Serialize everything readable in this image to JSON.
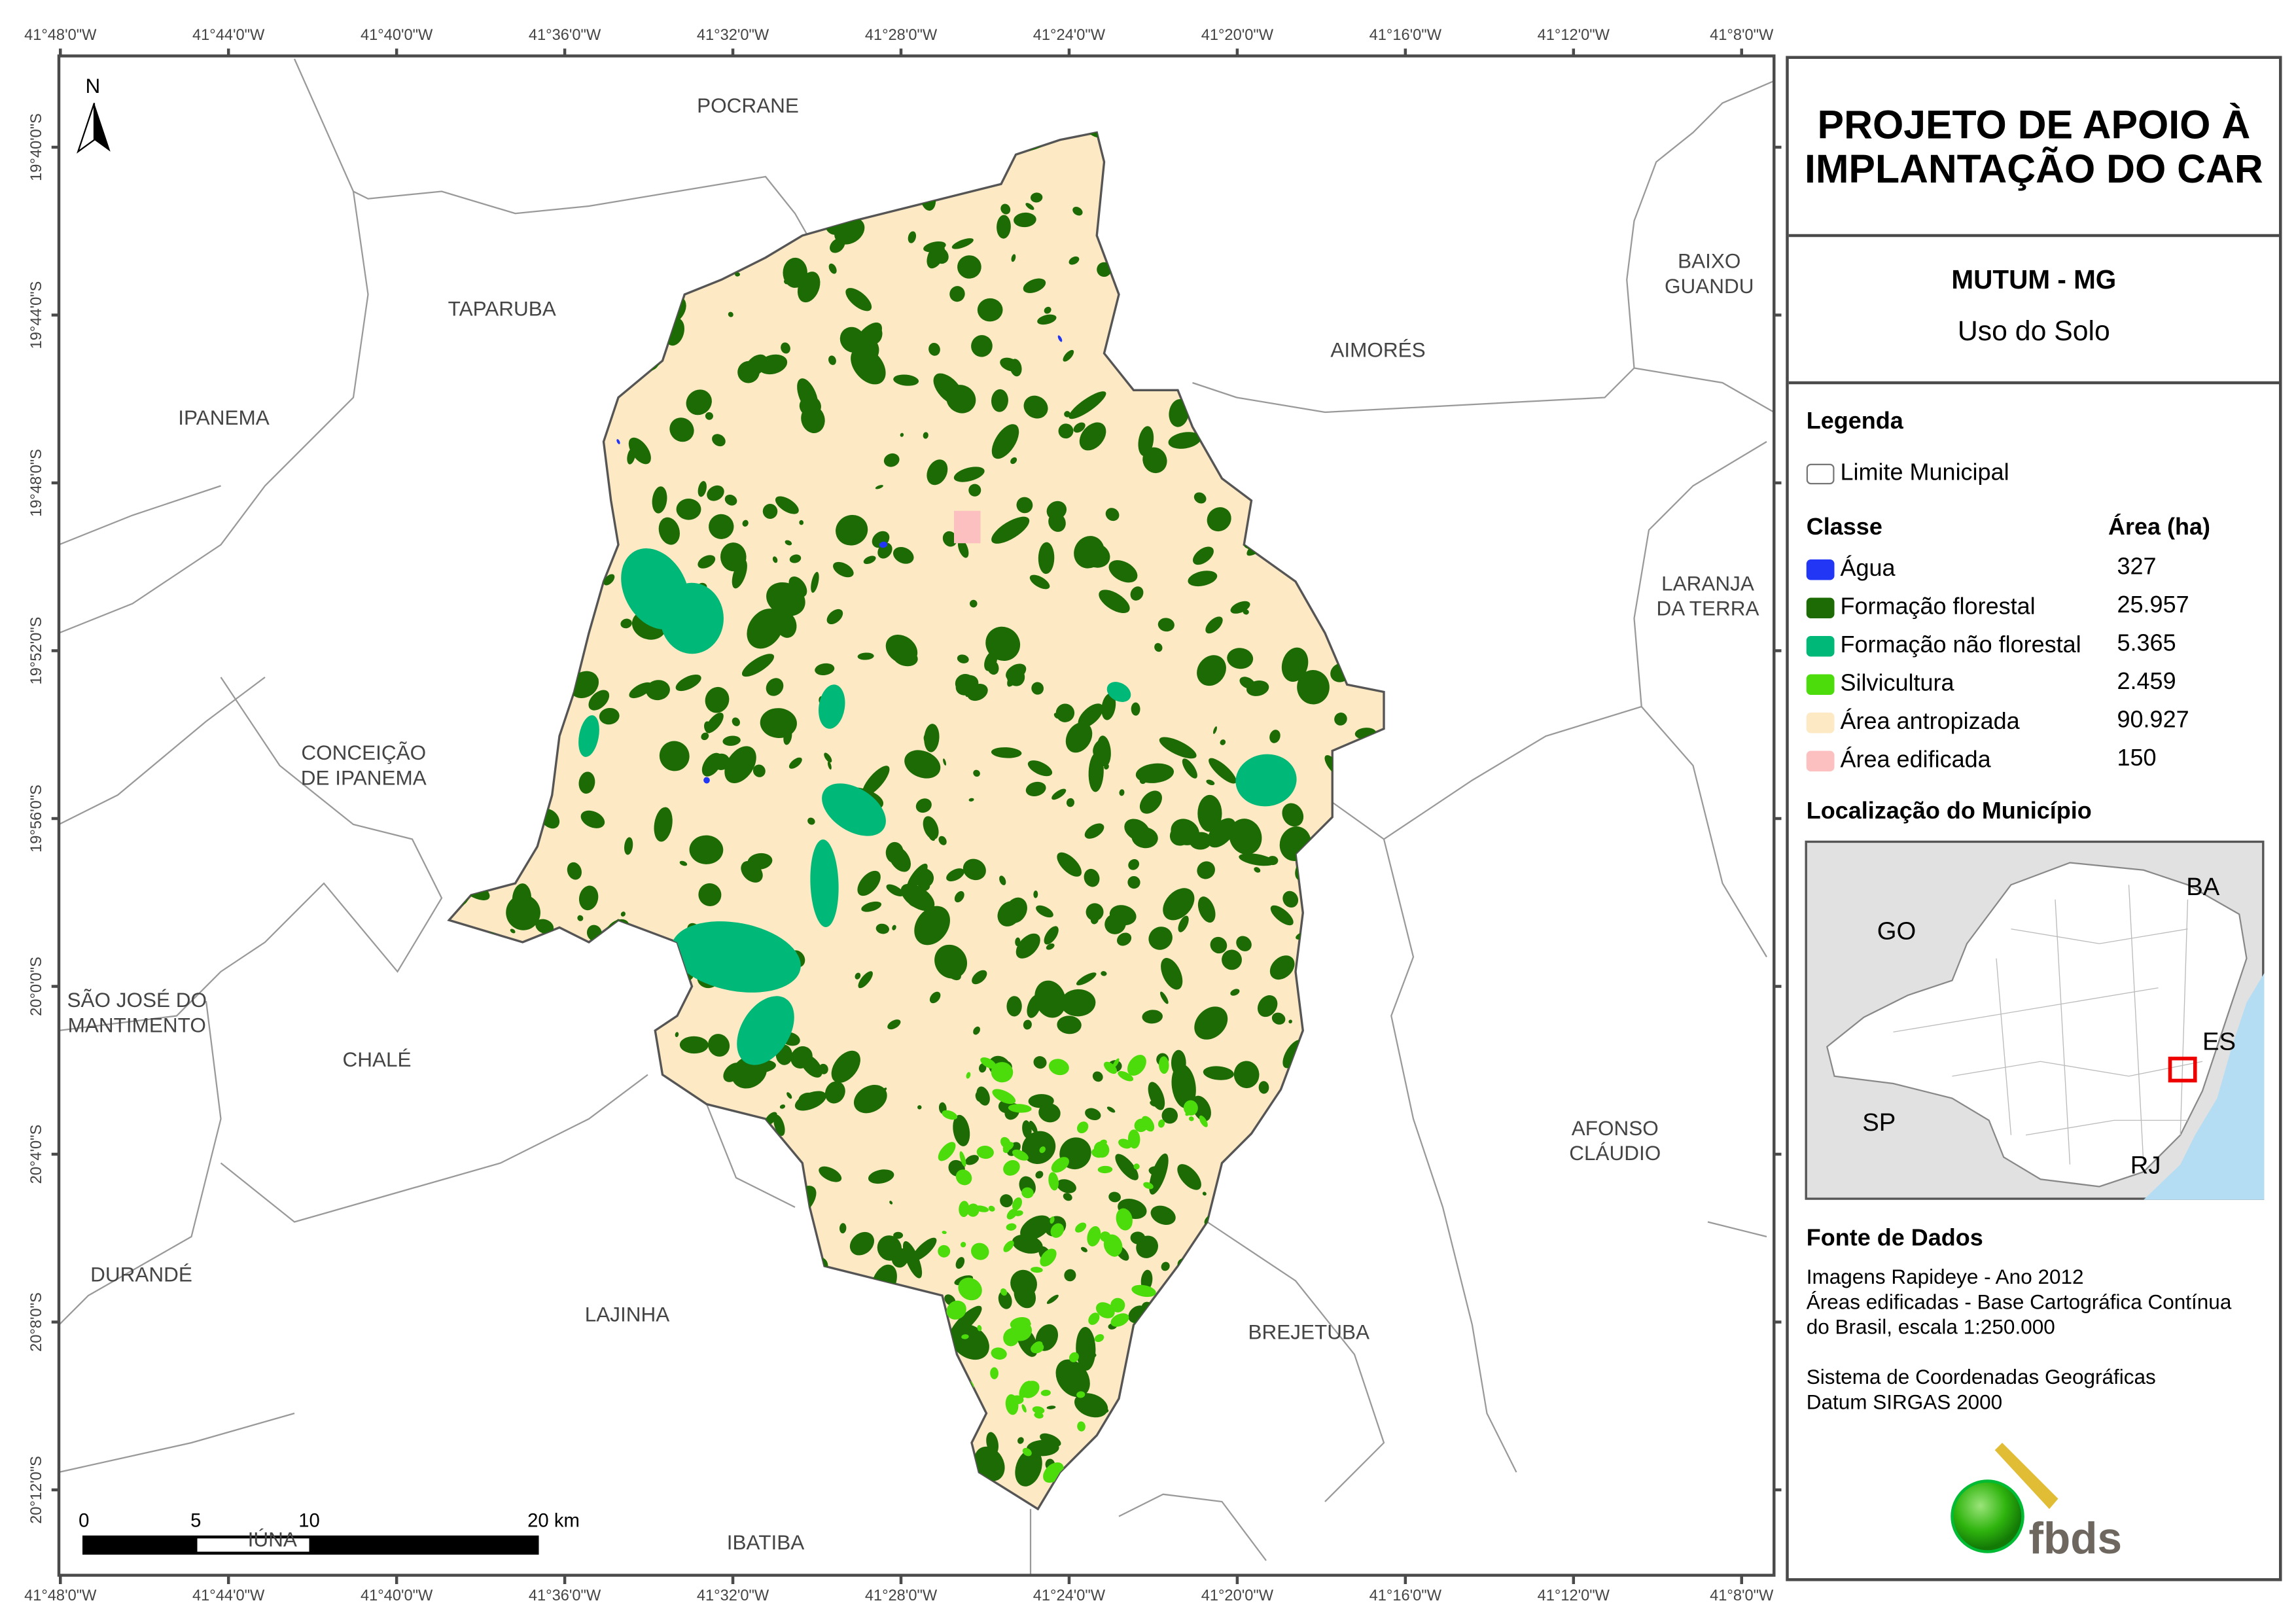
{
  "title": "PROJETO DE APOIO À IMPLANTAÇÃO DO CAR",
  "municipality": "MUTUM - MG",
  "subtitle": "Uso do Solo",
  "north_label": "N",
  "longitude_ticks": [
    "41°48'0\"W",
    "41°44'0\"W",
    "41°40'0\"W",
    "41°36'0\"W",
    "41°32'0\"W",
    "41°28'0\"W",
    "41°24'0\"W",
    "41°20'0\"W",
    "41°16'0\"W",
    "41°12'0\"W",
    "41°8'0\"W"
  ],
  "latitude_ticks": [
    "19°40'0\"S",
    "19°44'0\"S",
    "19°48'0\"S",
    "19°52'0\"S",
    "19°56'0\"S",
    "20°0'0\"S",
    "20°4'0\"S",
    "20°8'0\"S",
    "20°12'0\"S"
  ],
  "neighbor_labels": [
    {
      "name": "POCRANE"
    },
    {
      "name": "TAPARUBA"
    },
    {
      "name": "IPANEMA"
    },
    {
      "name": "AIMORÉS"
    },
    {
      "name": "BAIXO\nGUANDU"
    },
    {
      "name": "LARANJA\nDA TERRA"
    },
    {
      "name": "CONCEIÇÃO\nDE IPANEMA"
    },
    {
      "name": "SÃO JOSÉ DO\nMANTIMENTO"
    },
    {
      "name": "CHALÉ"
    },
    {
      "name": "AFONSO\nCLÁUDIO"
    },
    {
      "name": "DURANDÉ"
    },
    {
      "name": "LAJINHA"
    },
    {
      "name": "BREJETUBA"
    },
    {
      "name": "IÚNA"
    },
    {
      "name": "IBATIBA"
    }
  ],
  "scale_bar": {
    "labels": [
      "0",
      "5",
      "10",
      "20 km"
    ]
  },
  "legend": {
    "title": "Legenda",
    "boundary_label": "Limite Municipal",
    "class_header": "Classe",
    "area_header": "Área (ha)",
    "classes": [
      {
        "label": "Água",
        "area": "327",
        "color": "#2236f5"
      },
      {
        "label": "Formação florestal",
        "area": "25.957",
        "color": "#1c6b05"
      },
      {
        "label": "Formação não florestal",
        "area": "5.365",
        "color": "#00b877"
      },
      {
        "label": "Silvicultura",
        "area": "2.459",
        "color": "#4ddc0b"
      },
      {
        "label": "Área antropizada",
        "area": "90.927",
        "color": "#fde9c3"
      },
      {
        "label": "Área edificada",
        "area": "150",
        "color": "#fcc0c0"
      }
    ]
  },
  "location": {
    "title": "Localização do Município",
    "states": [
      "BA",
      "GO",
      "ES",
      "SP",
      "RJ"
    ]
  },
  "sources": {
    "title": "Fonte de Dados",
    "lines": [
      "Imagens Rapideye - Ano 2012",
      "Áreas edificadas - Base Cartográfica Contínua",
      "do Brasil, escala 1:250.000",
      "",
      "Sistema de Coordenadas Geográficas",
      "Datum SIRGAS 2000"
    ]
  },
  "logo": {
    "text": "fbds"
  }
}
